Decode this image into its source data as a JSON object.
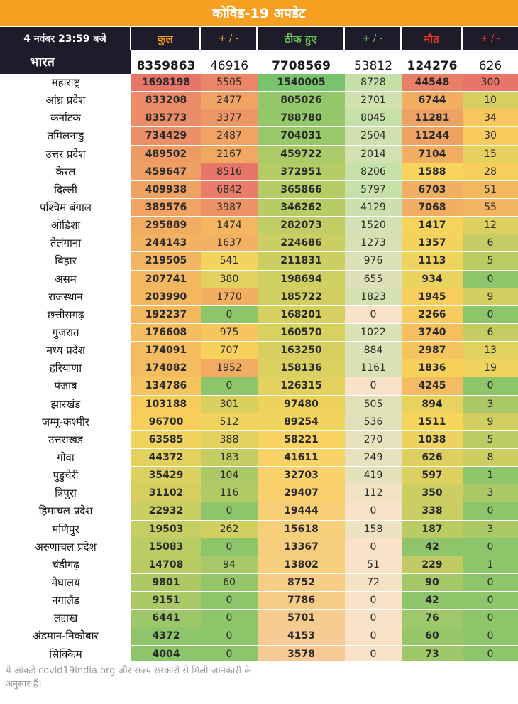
{
  "title": "कोविड-19 अपडेट",
  "header": {
    "date": "4 नवंबर 23:59 बजे",
    "columns": [
      "कुल",
      "+ / -",
      "ठीक हुए",
      "+ / -",
      "मौत",
      "+ / -"
    ]
  },
  "colors": {
    "title_bg": "#f6a021",
    "header_bg": "#1e1c2a",
    "col_total": "#f6a021",
    "col_recovered": "#6bbf4e",
    "col_deaths": "#e8372a",
    "heat_high": "#e8756a",
    "heat_mid": "#f9d45c",
    "heat_low": "#8cc56a"
  },
  "national": {
    "name": "भारत",
    "values": [
      "8359863",
      "46916",
      "7708569",
      "53812",
      "124276",
      "626"
    ]
  },
  "rows": [
    {
      "name": "महाराष्ट्र",
      "values": [
        "1698198",
        "5505",
        "1540005",
        "8728",
        "44548",
        "300"
      ]
    },
    {
      "name": "आंध्र प्रदेश",
      "values": [
        "833208",
        "2477",
        "805026",
        "2701",
        "6744",
        "10"
      ]
    },
    {
      "name": "कर्नाटक",
      "values": [
        "835773",
        "3377",
        "788780",
        "8045",
        "11281",
        "34"
      ]
    },
    {
      "name": "तमिलनाडु",
      "values": [
        "734429",
        "2487",
        "704031",
        "2504",
        "11244",
        "30"
      ]
    },
    {
      "name": "उत्तर प्रदेश",
      "values": [
        "489502",
        "2167",
        "459722",
        "2014",
        "7104",
        "15"
      ]
    },
    {
      "name": "केरल",
      "values": [
        "459647",
        "8516",
        "372951",
        "8206",
        "1588",
        "28"
      ]
    },
    {
      "name": "दिल्ली",
      "values": [
        "409938",
        "6842",
        "365866",
        "5797",
        "6703",
        "51"
      ]
    },
    {
      "name": "पश्चिम बंगाल",
      "values": [
        "389576",
        "3987",
        "346262",
        "4129",
        "7068",
        "55"
      ]
    },
    {
      "name": "ओडिशा",
      "values": [
        "295889",
        "1474",
        "282073",
        "1520",
        "1417",
        "12"
      ]
    },
    {
      "name": "तेलंगाना",
      "values": [
        "244143",
        "1637",
        "224686",
        "1273",
        "1357",
        "6"
      ]
    },
    {
      "name": "बिहार",
      "values": [
        "219505",
        "541",
        "211831",
        "976",
        "1113",
        "5"
      ]
    },
    {
      "name": "असम",
      "values": [
        "207741",
        "380",
        "198694",
        "655",
        "934",
        "0"
      ]
    },
    {
      "name": "राजस्थान",
      "values": [
        "203990",
        "1770",
        "185722",
        "1823",
        "1945",
        "9"
      ]
    },
    {
      "name": "छत्तीसगढ़",
      "values": [
        "192237",
        "0",
        "168201",
        "0",
        "2266",
        "0"
      ]
    },
    {
      "name": "गुजरात",
      "values": [
        "176608",
        "975",
        "160570",
        "1022",
        "3740",
        "6"
      ]
    },
    {
      "name": "मध्य प्रदेश",
      "values": [
        "174091",
        "707",
        "163250",
        "884",
        "2987",
        "13"
      ]
    },
    {
      "name": "हरियाणा",
      "values": [
        "174082",
        "1952",
        "158136",
        "1161",
        "1836",
        "19"
      ]
    },
    {
      "name": "पंजाब",
      "values": [
        "134786",
        "0",
        "126315",
        "0",
        "4245",
        "0"
      ]
    },
    {
      "name": "झारखंड",
      "values": [
        "103188",
        "301",
        "97480",
        "505",
        "894",
        "3"
      ]
    },
    {
      "name": "जम्मू-कश्मीर",
      "values": [
        "96700",
        "512",
        "89254",
        "536",
        "1511",
        "9"
      ]
    },
    {
      "name": "उत्तराखंड",
      "values": [
        "63585",
        "388",
        "58221",
        "270",
        "1038",
        "5"
      ]
    },
    {
      "name": "गोवा",
      "values": [
        "44372",
        "183",
        "41611",
        "249",
        "626",
        "8"
      ]
    },
    {
      "name": "पुडुचेरी",
      "values": [
        "35429",
        "104",
        "32703",
        "419",
        "597",
        "1"
      ]
    },
    {
      "name": "त्रिपुरा",
      "values": [
        "31102",
        "116",
        "29407",
        "112",
        "350",
        "3"
      ]
    },
    {
      "name": "हिमाचल प्रदेश",
      "values": [
        "22932",
        "0",
        "19444",
        "0",
        "338",
        "0"
      ]
    },
    {
      "name": "मणिपुर",
      "values": [
        "19503",
        "262",
        "15618",
        "158",
        "187",
        "3"
      ]
    },
    {
      "name": "अरुणाचल प्रदेश",
      "values": [
        "15083",
        "0",
        "13367",
        "0",
        "42",
        "0"
      ]
    },
    {
      "name": "चंडीगढ़",
      "values": [
        "14708",
        "94",
        "13802",
        "51",
        "229",
        "1"
      ]
    },
    {
      "name": "मेघालय",
      "values": [
        "9801",
        "60",
        "8752",
        "72",
        "90",
        "0"
      ]
    },
    {
      "name": "नगालैंड",
      "values": [
        "9151",
        "0",
        "7786",
        "0",
        "42",
        "0"
      ]
    },
    {
      "name": "लद्दाख",
      "values": [
        "6441",
        "0",
        "5701",
        "0",
        "76",
        "0"
      ]
    },
    {
      "name": "अंडमान-निकोबार",
      "values": [
        "4372",
        "0",
        "4153",
        "0",
        "60",
        "0"
      ]
    },
    {
      "name": "सिक्किम",
      "values": [
        "4004",
        "0",
        "3578",
        "0",
        "73",
        "0"
      ]
    }
  ],
  "footer": "ये आंकड़े covid19india.org और राज्य सरकारों से मिली जानकारी के अनुसार हैं।"
}
